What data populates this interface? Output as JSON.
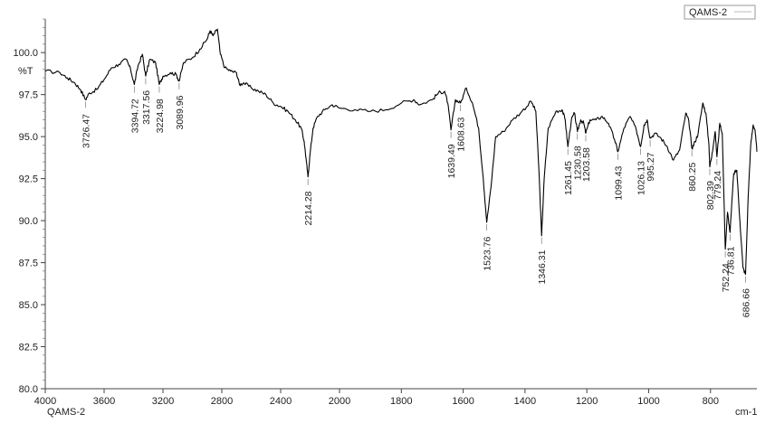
{
  "chart_data": {
    "type": "line",
    "title": "",
    "ylabel": "%T",
    "xlabel_unit": "cm-1",
    "sample_label": "QAMS-2",
    "xlim": [
      4000,
      650
    ],
    "ylim": [
      80,
      102
    ],
    "x_reversed": true,
    "grid": false,
    "legend": {
      "placement": "top-right",
      "entries": [
        "QAMS-2"
      ]
    },
    "x_ticks": [
      4000,
      3600,
      3200,
      2800,
      2400,
      2000,
      1800,
      1600,
      1400,
      1200,
      1000,
      800
    ],
    "x_tick_labels": [
      "4000",
      "3600",
      "3200",
      "2800",
      "2400",
      "2000",
      "1800",
      "1600",
      "1400",
      "1200",
      "1000",
      "800"
    ],
    "y_ticks": [
      80,
      82.5,
      85,
      87.5,
      90,
      92.5,
      95,
      97.5,
      100
    ],
    "y_tick_labels": [
      "80.0",
      "82.5",
      "85.0",
      "87.5",
      "90.0",
      "92.5",
      "95.0",
      "97.5",
      "100.0"
    ],
    "series": [
      {
        "name": "QAMS-2",
        "color": "#000000",
        "points": [
          [
            4000,
            98.9
          ],
          [
            3900,
            98.8
          ],
          [
            3850,
            98.5
          ],
          [
            3800,
            98.2
          ],
          [
            3760,
            97.8
          ],
          [
            3726.47,
            97.2
          ],
          [
            3700,
            97.6
          ],
          [
            3650,
            97.8
          ],
          [
            3600,
            98.4
          ],
          [
            3550,
            99.1
          ],
          [
            3500,
            99.3
          ],
          [
            3450,
            99.6
          ],
          [
            3420,
            99.0
          ],
          [
            3394.72,
            98.1
          ],
          [
            3370,
            99.2
          ],
          [
            3340,
            99.9
          ],
          [
            3317.56,
            98.6
          ],
          [
            3290,
            99.6
          ],
          [
            3250,
            99.4
          ],
          [
            3224.98,
            98.1
          ],
          [
            3200,
            98.6
          ],
          [
            3150,
            98.8
          ],
          [
            3110,
            98.7
          ],
          [
            3089.96,
            98.3
          ],
          [
            3060,
            99.4
          ],
          [
            3000,
            99.7
          ],
          [
            2950,
            100.2
          ],
          [
            2900,
            100.8
          ],
          [
            2880,
            101.3
          ],
          [
            2860,
            101.0
          ],
          [
            2830,
            101.4
          ],
          [
            2810,
            99.9
          ],
          [
            2780,
            99.1
          ],
          [
            2740,
            98.9
          ],
          [
            2700,
            98.8
          ],
          [
            2680,
            98.1
          ],
          [
            2650,
            98.2
          ],
          [
            2600,
            97.9
          ],
          [
            2550,
            97.7
          ],
          [
            2500,
            97.5
          ],
          [
            2450,
            97.0
          ],
          [
            2400,
            96.8
          ],
          [
            2350,
            96.5
          ],
          [
            2300,
            96.0
          ],
          [
            2260,
            95.5
          ],
          [
            2240,
            94.7
          ],
          [
            2225,
            93.5
          ],
          [
            2214.28,
            92.6
          ],
          [
            2200,
            94.0
          ],
          [
            2180,
            95.5
          ],
          [
            2150,
            96.2
          ],
          [
            2100,
            96.6
          ],
          [
            2050,
            96.9
          ],
          [
            2000,
            96.7
          ],
          [
            1950,
            96.6
          ],
          [
            1900,
            96.5
          ],
          [
            1850,
            96.6
          ],
          [
            1800,
            97.0
          ],
          [
            1760,
            97.2
          ],
          [
            1740,
            96.9
          ],
          [
            1700,
            97.2
          ],
          [
            1680,
            97.6
          ],
          [
            1660,
            97.7
          ],
          [
            1650,
            97.0
          ],
          [
            1639.49,
            95.4
          ],
          [
            1625,
            97.2
          ],
          [
            1608.63,
            97.0
          ],
          [
            1590,
            97.9
          ],
          [
            1570,
            97.0
          ],
          [
            1550,
            95.5
          ],
          [
            1535,
            92.5
          ],
          [
            1523.76,
            89.9
          ],
          [
            1510,
            92.0
          ],
          [
            1495,
            95.0
          ],
          [
            1470,
            95.3
          ],
          [
            1440,
            96.0
          ],
          [
            1410,
            96.5
          ],
          [
            1380,
            97.1
          ],
          [
            1365,
            96.5
          ],
          [
            1355,
            93.0
          ],
          [
            1346.31,
            89.1
          ],
          [
            1338,
            92.5
          ],
          [
            1325,
            95.5
          ],
          [
            1300,
            96.5
          ],
          [
            1280,
            96.6
          ],
          [
            1270,
            96.0
          ],
          [
            1261.45,
            94.4
          ],
          [
            1250,
            96.0
          ],
          [
            1240,
            96.4
          ],
          [
            1230.58,
            95.3
          ],
          [
            1220,
            96.0
          ],
          [
            1210,
            95.8
          ],
          [
            1203.58,
            95.2
          ],
          [
            1190,
            96.0
          ],
          [
            1170,
            96.0
          ],
          [
            1150,
            96.2
          ],
          [
            1130,
            95.8
          ],
          [
            1110,
            94.8
          ],
          [
            1099.43,
            94.1
          ],
          [
            1080,
            95.5
          ],
          [
            1060,
            96.2
          ],
          [
            1040,
            95.4
          ],
          [
            1026.13,
            94.4
          ],
          [
            1015,
            95.7
          ],
          [
            1005,
            96.0
          ],
          [
            995.27,
            94.9
          ],
          [
            980,
            95.2
          ],
          [
            960,
            94.9
          ],
          [
            940,
            94.4
          ],
          [
            920,
            93.6
          ],
          [
            900,
            94.2
          ],
          [
            880,
            96.4
          ],
          [
            870,
            95.9
          ],
          [
            860.25,
            94.3
          ],
          [
            850,
            94.7
          ],
          [
            840,
            95.2
          ],
          [
            825,
            97.0
          ],
          [
            815,
            96.4
          ],
          [
            805,
            94.5
          ],
          [
            802.39,
            93.2
          ],
          [
            795,
            94.0
          ],
          [
            785,
            95.3
          ],
          [
            779.24,
            93.8
          ],
          [
            770,
            95.8
          ],
          [
            762,
            95.2
          ],
          [
            752.24,
            88.3
          ],
          [
            745,
            90.5
          ],
          [
            736.81,
            89.3
          ],
          [
            725,
            92.8
          ],
          [
            715,
            93.0
          ],
          [
            705,
            90.0
          ],
          [
            695,
            87.2
          ],
          [
            686.66,
            86.8
          ],
          [
            678,
            91.5
          ],
          [
            670,
            94.5
          ],
          [
            662,
            95.7
          ],
          [
            656,
            95.4
          ],
          [
            650,
            94.1
          ]
        ]
      }
    ],
    "peak_labels": [
      {
        "x": 3726.47,
        "y": 97.2,
        "text": "3726.47"
      },
      {
        "x": 3394.72,
        "y": 98.1,
        "text": "3394.72"
      },
      {
        "x": 3317.56,
        "y": 98.6,
        "text": "3317.56"
      },
      {
        "x": 3224.98,
        "y": 98.1,
        "text": "3224.98"
      },
      {
        "x": 3089.96,
        "y": 98.3,
        "text": "3089.96"
      },
      {
        "x": 2214.28,
        "y": 92.6,
        "text": "2214.28"
      },
      {
        "x": 1639.49,
        "y": 95.4,
        "text": "1639.49"
      },
      {
        "x": 1608.63,
        "y": 97.0,
        "text": "1608.63"
      },
      {
        "x": 1523.76,
        "y": 89.9,
        "text": "1523.76"
      },
      {
        "x": 1346.31,
        "y": 89.1,
        "text": "1346.31"
      },
      {
        "x": 1261.45,
        "y": 94.4,
        "text": "1261.45"
      },
      {
        "x": 1230.58,
        "y": 95.3,
        "text": "1230.58"
      },
      {
        "x": 1203.58,
        "y": 95.2,
        "text": "1203.58"
      },
      {
        "x": 1099.43,
        "y": 94.1,
        "text": "1099.43"
      },
      {
        "x": 1026.13,
        "y": 94.4,
        "text": "1026.13"
      },
      {
        "x": 995.27,
        "y": 94.9,
        "text": "995.27"
      },
      {
        "x": 860.25,
        "y": 94.3,
        "text": "860.25"
      },
      {
        "x": 802.39,
        "y": 93.2,
        "text": "802.39"
      },
      {
        "x": 779.24,
        "y": 93.8,
        "text": "779.24"
      },
      {
        "x": 752.24,
        "y": 88.3,
        "text": "752.24"
      },
      {
        "x": 736.81,
        "y": 89.3,
        "text": "736.81"
      },
      {
        "x": 686.66,
        "y": 86.8,
        "text": "686.66"
      }
    ]
  }
}
